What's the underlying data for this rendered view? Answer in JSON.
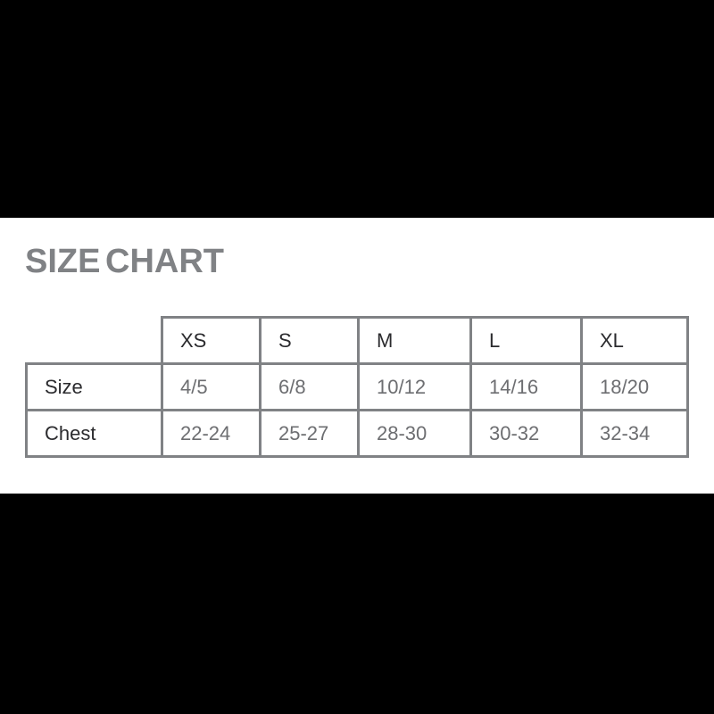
{
  "title": "SIZE CHART",
  "colors": {
    "letterbox": "#000000",
    "panel_background": "#ffffff",
    "title_text": "#808285",
    "table_border": "#808285",
    "header_text": "#2b2b2e",
    "value_text": "#6d6e71"
  },
  "chart_data": {
    "type": "table",
    "title": "SIZE CHART",
    "columns": [
      "",
      "XS",
      "S",
      "M",
      "L",
      "XL"
    ],
    "rows": [
      {
        "label": "Size",
        "values": [
          "4/5",
          "6/8",
          "10/12",
          "14/16",
          "18/20"
        ]
      },
      {
        "label": "Chest",
        "values": [
          "22-24",
          "25-27",
          "28-30",
          "30-32",
          "32-34"
        ]
      }
    ],
    "layout_hints": {
      "header_row_on_top": true,
      "first_column_is_row_labels": true,
      "blank_top_left_cell": true,
      "grid": "on"
    }
  }
}
